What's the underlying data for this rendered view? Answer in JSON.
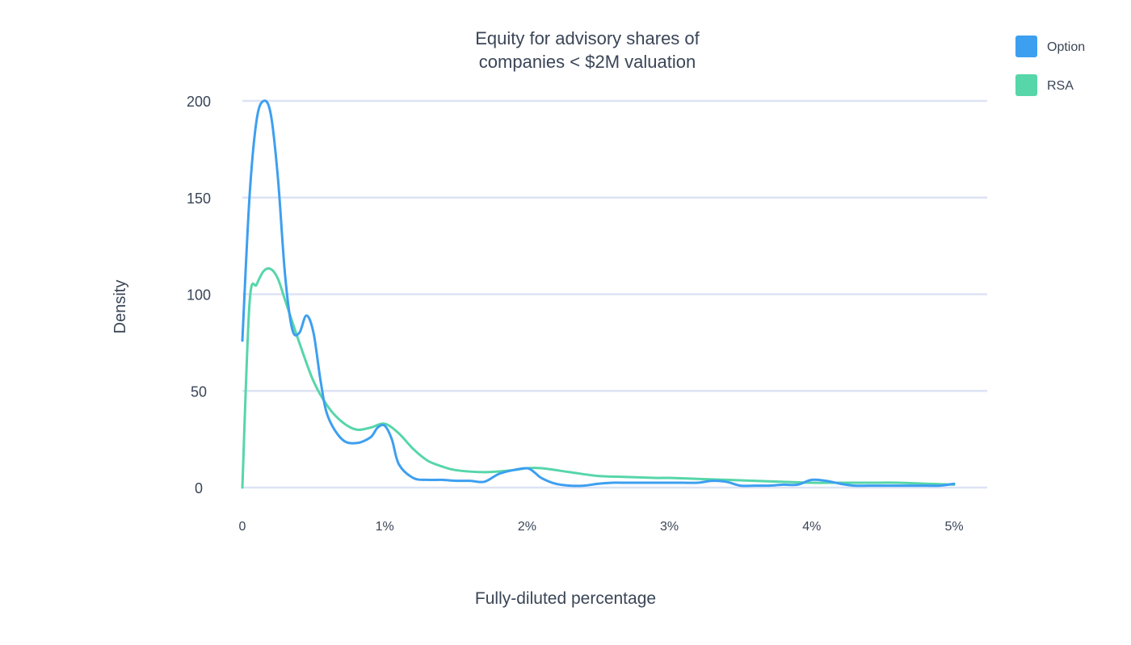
{
  "chart_data": {
    "type": "line",
    "title_lines": [
      "Equity for advisory shares of",
      "companies < $2M valuation"
    ],
    "xlabel": "Fully-diluted percentage",
    "ylabel": "Density",
    "xlim": [
      0,
      5
    ],
    "ylim": [
      0,
      200
    ],
    "x_ticks": [
      {
        "value": 0,
        "label": "0"
      },
      {
        "value": 1,
        "label": "1%"
      },
      {
        "value": 2,
        "label": "2%"
      },
      {
        "value": 3,
        "label": "3%"
      },
      {
        "value": 4,
        "label": "4%"
      },
      {
        "value": 5,
        "label": "5%"
      }
    ],
    "y_ticks": [
      {
        "value": 0,
        "label": "0"
      },
      {
        "value": 50,
        "label": "50"
      },
      {
        "value": 100,
        "label": "100"
      },
      {
        "value": 150,
        "label": "150"
      },
      {
        "value": 200,
        "label": "200"
      }
    ],
    "grid": true,
    "legend_position": "top-right",
    "series": [
      {
        "name": "Option",
        "color": "#3d9ff0",
        "x": [
          0,
          0.05,
          0.1,
          0.15,
          0.2,
          0.25,
          0.3,
          0.35,
          0.4,
          0.45,
          0.5,
          0.55,
          0.6,
          0.7,
          0.8,
          0.9,
          0.95,
          1.0,
          1.05,
          1.1,
          1.2,
          1.3,
          1.4,
          1.5,
          1.6,
          1.7,
          1.8,
          1.9,
          2.0,
          2.05,
          2.1,
          2.2,
          2.3,
          2.4,
          2.5,
          2.6,
          2.7,
          2.8,
          2.9,
          3.0,
          3.1,
          3.2,
          3.3,
          3.4,
          3.5,
          3.6,
          3.7,
          3.8,
          3.9,
          4.0,
          4.1,
          4.2,
          4.3,
          4.4,
          4.5,
          4.6,
          4.7,
          4.8,
          4.9,
          5.0
        ],
        "y": [
          76,
          150,
          190,
          200,
          193,
          160,
          110,
          82,
          80,
          89,
          80,
          55,
          37,
          25,
          23,
          26,
          31,
          32,
          25,
          12,
          5,
          4,
          4,
          3.5,
          3.5,
          3,
          7,
          9,
          10,
          8,
          5,
          2,
          1,
          1,
          2,
          2.5,
          2.5,
          2.5,
          2.5,
          2.5,
          2.5,
          2.5,
          3.5,
          3,
          1,
          1,
          1,
          1.5,
          1.5,
          4,
          3.5,
          2,
          1,
          1,
          1,
          1,
          1,
          1,
          1,
          2
        ]
      },
      {
        "name": "RSA",
        "color": "#56d6a9",
        "x": [
          0,
          0.05,
          0.1,
          0.15,
          0.2,
          0.25,
          0.3,
          0.4,
          0.5,
          0.6,
          0.7,
          0.8,
          0.9,
          1.0,
          1.1,
          1.2,
          1.3,
          1.4,
          1.5,
          1.7,
          1.9,
          2.0,
          2.1,
          2.3,
          2.5,
          2.7,
          2.9,
          3.0,
          3.2,
          3.4,
          3.6,
          3.8,
          4.0,
          4.2,
          4.4,
          4.6,
          4.8,
          5.0
        ],
        "y": [
          0,
          95,
          105,
          112,
          113,
          108,
          97,
          75,
          55,
          42,
          34,
          30,
          31,
          33,
          28,
          20,
          14,
          11,
          9,
          8,
          9,
          10,
          10,
          8,
          6,
          5.5,
          5,
          5,
          4.5,
          4,
          3.5,
          3,
          2.5,
          2.5,
          2.5,
          2.5,
          2,
          1.5
        ]
      }
    ]
  }
}
